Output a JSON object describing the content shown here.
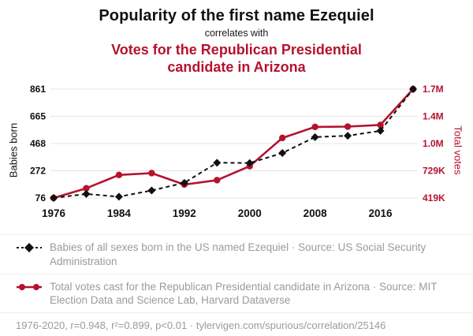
{
  "header": {
    "title": "Popularity of the first name Ezequiel",
    "connector": "correlates with",
    "subtitle": "Votes for the Republican Presidential candidate in Arizona"
  },
  "colors": {
    "accent_red": "#b5122e",
    "series_black": "#111111",
    "grid": "#e4e4e4",
    "legend_text": "#9b9b9b"
  },
  "chart_data": {
    "type": "line",
    "x": [
      1976,
      1980,
      1984,
      1988,
      1992,
      1996,
      2000,
      2004,
      2008,
      2012,
      2016,
      2020
    ],
    "x_ticks": [
      1976,
      1984,
      1992,
      2000,
      2008,
      2016
    ],
    "grid": true,
    "legend_position": "bottom",
    "left_axis": {
      "label": "Babies born",
      "ticks": [
        76,
        272,
        468,
        665,
        861
      ],
      "min": 76,
      "max": 861
    },
    "right_axis": {
      "label": "Total votes",
      "tick_labels": [
        "419K",
        "729K",
        "1.0M",
        "1.4M",
        "1.7M"
      ],
      "min": 418642,
      "max": 1661686
    },
    "series": [
      {
        "name": "Babies of all sexes born in the US named Ezequiel",
        "axis": "left",
        "color": "#111111",
        "style": "dashed",
        "marker": "diamond",
        "values": [
          76,
          105,
          85,
          130,
          185,
          330,
          328,
          400,
          515,
          525,
          560,
          861
        ]
      },
      {
        "name": "Total votes cast for the Republican Presidential candidate in Arizona",
        "axis": "right",
        "color": "#b5122e",
        "style": "solid",
        "marker": "circle",
        "values": [
          418642,
          529688,
          681416,
          702541,
          572086,
          622073,
          781652,
          1104294,
          1230111,
          1233654,
          1252401,
          1661686
        ]
      }
    ]
  },
  "legend": {
    "item1": "Babies of all sexes born in the US named Ezequiel · Source: US Social Security Administration",
    "item2": "Total votes cast for the Republican Presidential candidate in Arizona · Source: MIT Election Data and Science Lab, Harvard Dataverse"
  },
  "footer": {
    "stats": "1976-2020, r=0.948, r²=0.899, p<0.01 · ",
    "url": "tylervigen.com/spurious/correlation/25146"
  }
}
